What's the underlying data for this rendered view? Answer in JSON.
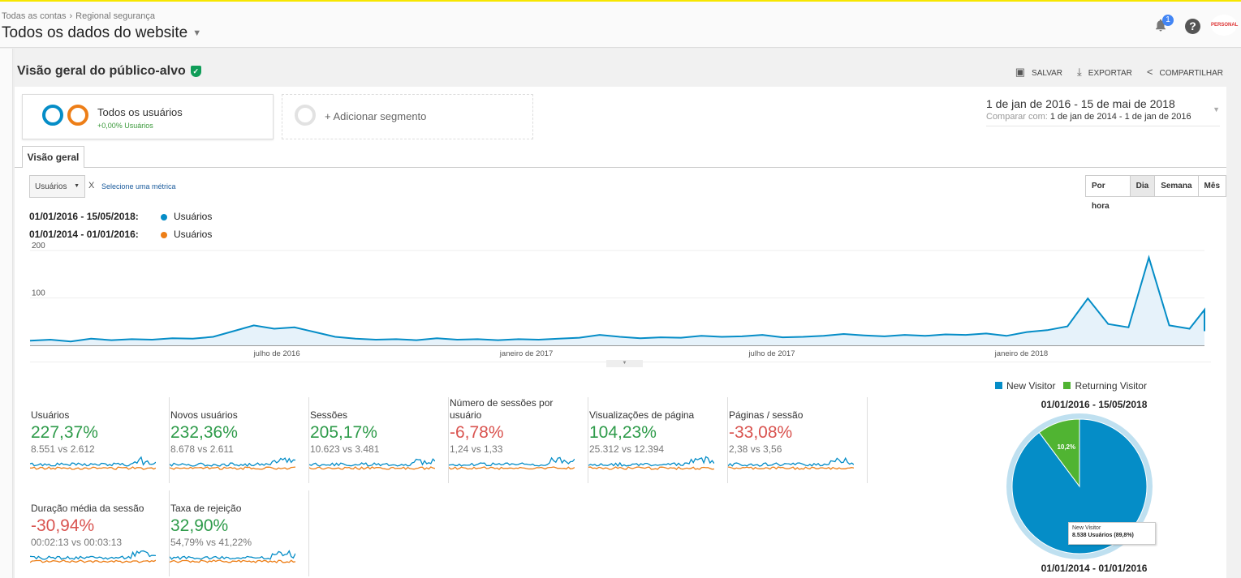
{
  "header": {
    "breadcrumb": [
      "Todas as contas",
      "Regional segurança"
    ],
    "property": "Todos os dados do website",
    "notification_count": "1",
    "help": "?",
    "avatar": "PERSONAL"
  },
  "page": {
    "title": "Visão geral do público-alvo",
    "actions": {
      "save": "SALVAR",
      "export": "EXPORTAR",
      "share": "COMPARTILHAR"
    }
  },
  "segments": {
    "active_name": "Todos os usuários",
    "active_sub": "+0,00% Usuários",
    "add": "+ Adicionar segmento"
  },
  "date_range": {
    "primary": "1 de jan de 2016 - 15 de mai de 2018",
    "compare_label": "Comparar com:",
    "compare": "1 de jan de 2014 - 1 de jan de 2016"
  },
  "tabs": [
    "Visão geral"
  ],
  "metric_selector": {
    "selected": "Usuários",
    "remove": "X",
    "add": "Selecione uma métrica"
  },
  "granularity": {
    "options": [
      "Por hora",
      "Dia",
      "Semana",
      "Mês"
    ],
    "selected": "Dia"
  },
  "legend": [
    {
      "range": "01/01/2016 - 15/05/2018:",
      "series": "Usuários",
      "color": "#058dc7"
    },
    {
      "range": "01/01/2014 - 01/01/2016:",
      "series": "Usuários",
      "color": "#ed7e17"
    }
  ],
  "chart_data": {
    "type": "line",
    "ylim": [
      0,
      200
    ],
    "yticks": [
      "100",
      "200"
    ],
    "xticks": [
      "julho de 2016",
      "janeiro de 2017",
      "julho de 2017",
      "janeiro de 2018"
    ],
    "x_start": "01/01/2016",
    "x_end": "15/05/2018",
    "sample_interval_days": 15,
    "grid": true,
    "series": [
      {
        "name": "Usuários",
        "range": "01/01/2016 - 15/05/2018",
        "color": "#058dc7",
        "values": [
          10,
          12,
          8,
          14,
          11,
          13,
          12,
          15,
          14,
          18,
          30,
          42,
          35,
          38,
          28,
          18,
          14,
          12,
          13,
          11,
          15,
          12,
          13,
          11,
          13,
          12,
          14,
          16,
          22,
          18,
          15,
          17,
          16,
          20,
          18,
          19,
          22,
          17,
          18,
          20,
          24,
          21,
          19,
          22,
          20,
          23,
          22,
          25,
          20,
          28,
          32,
          40,
          99,
          45,
          38,
          185,
          42,
          35,
          75,
          30
        ]
      },
      {
        "name": "Usuários",
        "range": "01/01/2014 - 01/01/2016",
        "color": "#ed7e17",
        "values": [
          2,
          3,
          2,
          3,
          2,
          2,
          3,
          3,
          4,
          4,
          5,
          6,
          8,
          9,
          8,
          7,
          10,
          9,
          8,
          10,
          9,
          10,
          8,
          9,
          10,
          9,
          11,
          12,
          14,
          13,
          11,
          10,
          9,
          12,
          11,
          10,
          12,
          9,
          11,
          10,
          12,
          11,
          9,
          10,
          11,
          10,
          9,
          8,
          7
        ]
      }
    ]
  },
  "metrics": [
    {
      "name": "Usuários",
      "change": "227,37%",
      "trend": "up",
      "compare": "8.551 vs 2.612"
    },
    {
      "name": "Novos usuários",
      "change": "232,36%",
      "trend": "up",
      "compare": "8.678 vs 2.611"
    },
    {
      "name": "Sessões",
      "change": "205,17%",
      "trend": "up",
      "compare": "10.623 vs 3.481"
    },
    {
      "name": "Número de sessões por usuário",
      "change": "-6,78%",
      "trend": "down",
      "compare": "1,24 vs 1,33"
    },
    {
      "name": "Visualizações de página",
      "change": "104,23%",
      "trend": "up",
      "compare": "25.312 vs 12.394"
    },
    {
      "name": "Páginas / sessão",
      "change": "-33,08%",
      "trend": "down",
      "compare": "2,38 vs 3,56"
    },
    {
      "name": "Duração média da sessão",
      "change": "-30,94%",
      "trend": "down",
      "compare": "00:02:13 vs 00:03:13"
    },
    {
      "name": "Taxa de rejeição",
      "change": "32,90%",
      "trend": "up",
      "compare": "54,79% vs 41,22%"
    }
  ],
  "pie": {
    "legend": [
      {
        "label": "New Visitor",
        "color": "#058dc7"
      },
      {
        "label": "Returning Visitor",
        "color": "#50b432"
      }
    ],
    "range_primary": "01/01/2016 - 15/05/2018",
    "range_compare": "01/01/2014 - 01/01/2016",
    "slices": [
      {
        "label": "New Visitor",
        "percent": 89.8
      },
      {
        "label": "Returning Visitor",
        "percent": 10.2,
        "display": "10,2%"
      }
    ],
    "tooltip": {
      "title": "New Visitor",
      "value": "8.538 Usuários (89,8%)"
    }
  }
}
